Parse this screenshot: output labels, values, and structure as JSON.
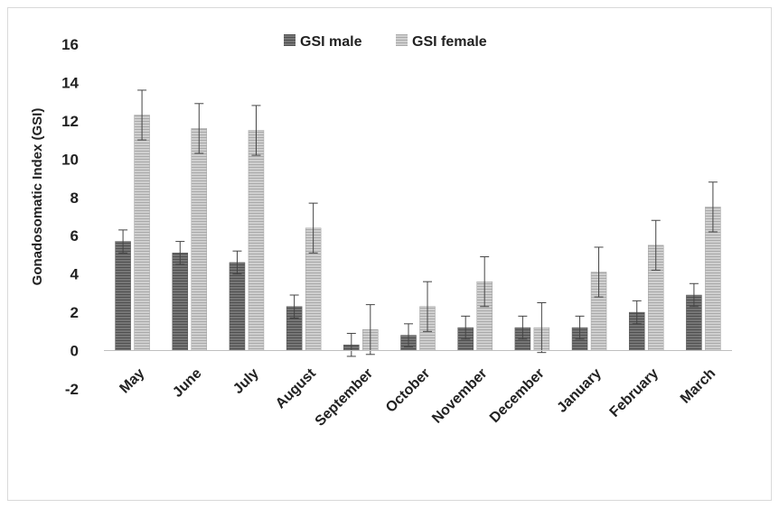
{
  "chart_data": {
    "type": "bar",
    "title": "",
    "xlabel": "",
    "ylabel": "Gonadosomatic Index (GSI)",
    "ylim": [
      -2,
      16
    ],
    "yticks": [
      -2,
      0,
      2,
      4,
      6,
      8,
      10,
      12,
      14,
      16
    ],
    "grid": false,
    "legend_position": "top-center",
    "categories": [
      "May",
      "June",
      "July",
      "August",
      "September",
      "October",
      "November",
      "December",
      "January",
      "February",
      "March"
    ],
    "series": [
      {
        "name": "GSI male",
        "color": "#6b6b6b",
        "values": [
          5.7,
          5.1,
          4.6,
          2.3,
          0.3,
          0.8,
          1.2,
          1.2,
          1.2,
          2.0,
          2.9
        ],
        "error": [
          0.6,
          0.6,
          0.6,
          0.6,
          0.6,
          0.6,
          0.6,
          0.6,
          0.6,
          0.6,
          0.6
        ]
      },
      {
        "name": "GSI female",
        "color": "#c4c4c4",
        "values": [
          12.3,
          11.6,
          11.5,
          6.4,
          1.1,
          2.3,
          3.6,
          1.2,
          4.1,
          5.5,
          7.5
        ],
        "error": [
          1.3,
          1.3,
          1.3,
          1.3,
          1.3,
          1.3,
          1.3,
          1.3,
          1.3,
          1.3,
          1.3
        ]
      }
    ]
  }
}
